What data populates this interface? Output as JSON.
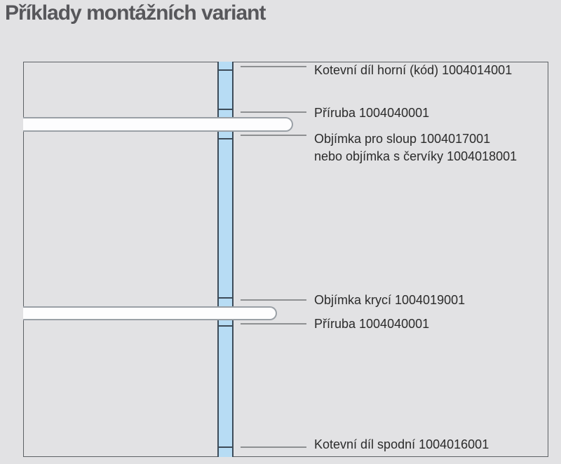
{
  "title": "Příklady montážních variant",
  "colors": {
    "background": "#e2e2e4",
    "frame_border": "#5d6165",
    "column_fill": "#b7dcf4",
    "column_outline": "#3d4b58",
    "bar_fill": "#fdfdfe",
    "bar_outline": "#9aa0a6",
    "leader": "#8e9092",
    "label_text": "#2b2b2b",
    "title_text": "#57575b"
  },
  "labels": [
    {
      "id": "kotevni-dil-horni",
      "text": "Kotevní díl horní (kód) 1004014001"
    },
    {
      "id": "priruba-horni",
      "text": "Příruba 1004040001"
    },
    {
      "id": "objimka-pro-sloup",
      "text": "Objímka pro sloup 1004017001",
      "text2": "nebo objímka s červíky 1004018001"
    },
    {
      "id": "objimka-kryci",
      "text": "Objímka krycí 1004019001"
    },
    {
      "id": "priruba-spodni",
      "text": "Příruba 1004040001"
    },
    {
      "id": "kotevni-dil-spodni",
      "text": "Kotevní díl spodní 1004016001"
    }
  ]
}
